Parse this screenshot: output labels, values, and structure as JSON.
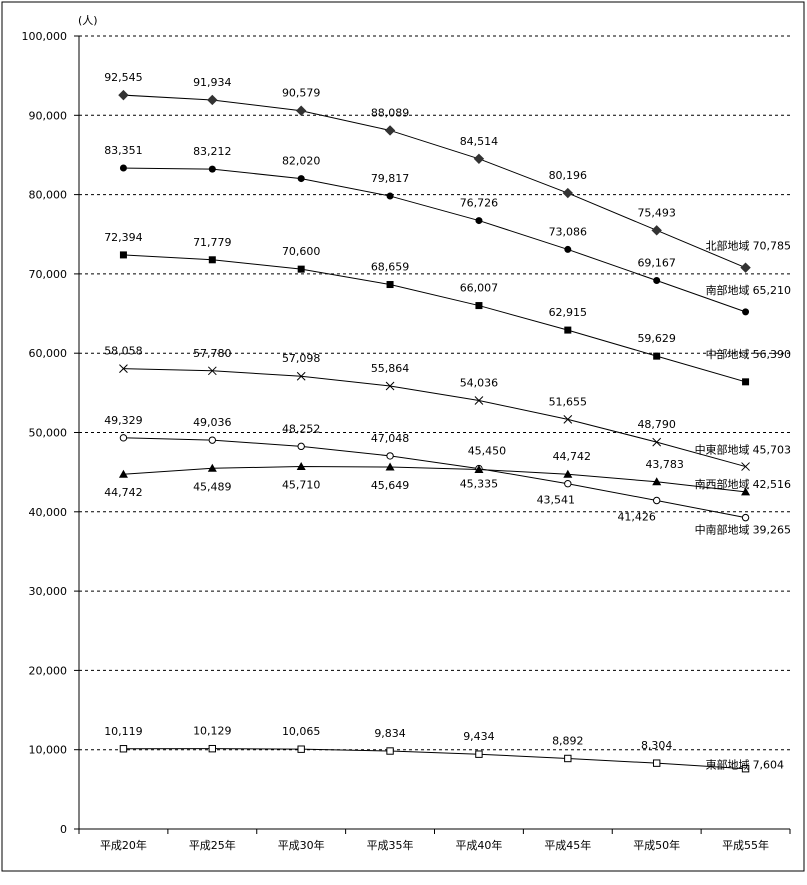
{
  "chart_data": {
    "type": "line",
    "unit_label": "(人)",
    "categories": [
      "平成20年",
      "平成25年",
      "平成30年",
      "平成35年",
      "平成40年",
      "平成45年",
      "平成50年",
      "平成55年"
    ],
    "ylim": [
      0,
      100000
    ],
    "yticks": [
      "0",
      "10,000",
      "20,000",
      "30,000",
      "40,000",
      "50,000",
      "60,000",
      "70,000",
      "80,000",
      "90,000",
      "100,000"
    ],
    "grid": "dashed horizontal",
    "series": [
      {
        "name": "北部地域",
        "marker": "diamond",
        "values": [
          92545,
          91934,
          90579,
          88089,
          84514,
          80196,
          75493,
          70785
        ],
        "labels": [
          "92,545",
          "91,934",
          "90,579",
          "88,089",
          "84,514",
          "80,196",
          "75,493",
          "70,785"
        ]
      },
      {
        "name": "南部地域",
        "marker": "circle-filled",
        "values": [
          83351,
          83212,
          82020,
          79817,
          76726,
          73086,
          69167,
          65210
        ],
        "labels": [
          "83,351",
          "83,212",
          "82,020",
          "79,817",
          "76,726",
          "73,086",
          "69,167",
          "65,210"
        ]
      },
      {
        "name": "中部地域",
        "marker": "square-filled",
        "values": [
          72394,
          71779,
          70600,
          68659,
          66007,
          62915,
          59629,
          56390
        ],
        "labels": [
          "72,394",
          "71,779",
          "70,600",
          "68,659",
          "66,007",
          "62,915",
          "59,629",
          "56,390"
        ]
      },
      {
        "name": "中東部地域",
        "marker": "cross",
        "values": [
          58058,
          57780,
          57098,
          55864,
          54036,
          51655,
          48790,
          45703
        ],
        "labels": [
          "58,058",
          "57,780",
          "57,098",
          "55,864",
          "54,036",
          "51,655",
          "48,790",
          "45,703"
        ]
      },
      {
        "name": "中南部地域",
        "marker": "circle-open",
        "values": [
          49329,
          49036,
          48252,
          47048,
          45450,
          43541,
          41426,
          39265
        ],
        "labels": [
          "49,329",
          "49,036",
          "48,252",
          "47,048",
          "45,450",
          "43,541",
          "41,426",
          "39,265"
        ]
      },
      {
        "name": "南西部地域",
        "marker": "triangle-filled",
        "values": [
          44742,
          45489,
          45710,
          45649,
          45335,
          44742,
          43783,
          42516
        ],
        "labels": [
          "44,742",
          "45,489",
          "45,710",
          "45,649",
          "45,335",
          "44,742",
          "43,783",
          "42,516"
        ]
      },
      {
        "name": "東部地域",
        "marker": "square-open",
        "values": [
          10119,
          10129,
          10065,
          9834,
          9434,
          8892,
          8304,
          7604
        ],
        "labels": [
          "10,119",
          "10,129",
          "10,065",
          "9,834",
          "9,434",
          "8,892",
          "8,304",
          "7,604"
        ]
      }
    ]
  }
}
